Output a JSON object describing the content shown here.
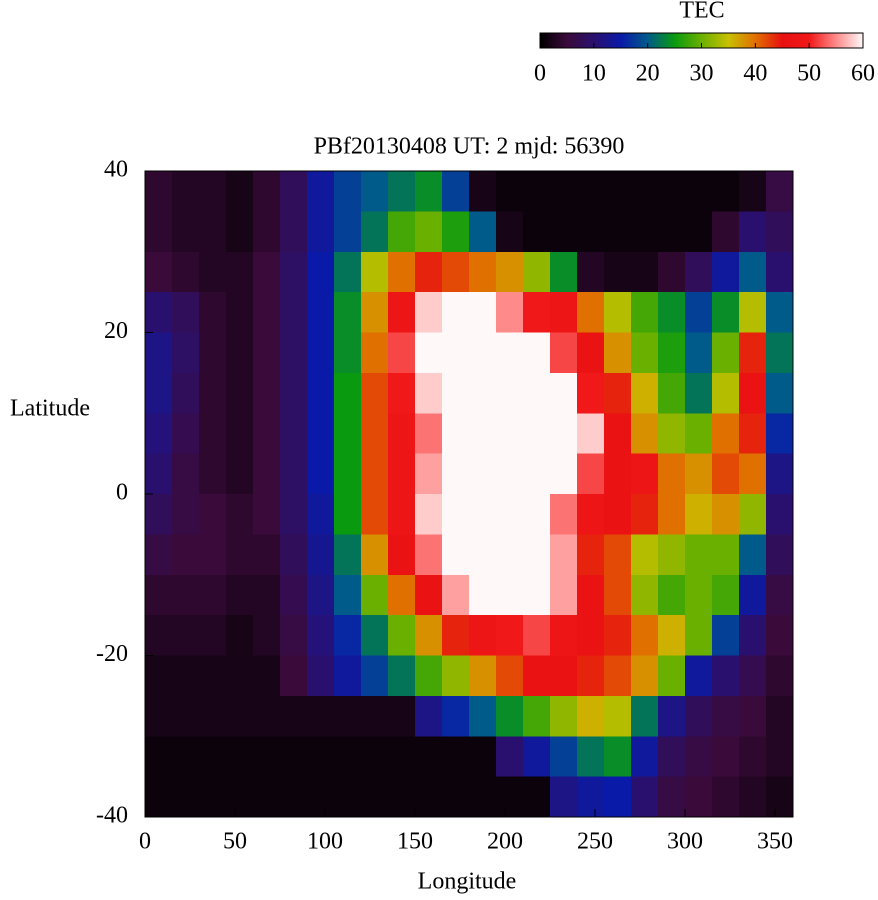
{
  "chart_data": {
    "type": "heatmap",
    "title": "PBf20130408  UT: 2  mjd: 56390",
    "xlabel": "Longitude",
    "ylabel": "Latitude",
    "xlim": [
      0,
      360
    ],
    "xticks": [
      0,
      50,
      100,
      150,
      200,
      250,
      300,
      350
    ],
    "ylim": [
      -40,
      40
    ],
    "yticks": [
      -40,
      -20,
      0,
      20,
      40
    ],
    "x": [
      7.5,
      22.5,
      37.5,
      52.5,
      67.5,
      82.5,
      97.5,
      112.5,
      127.5,
      142.5,
      157.5,
      172.5,
      187.5,
      202.5,
      217.5,
      232.5,
      247.5,
      262.5,
      277.5,
      292.5,
      307.5,
      322.5,
      337.5,
      352.5
    ],
    "y": [
      37.5,
      32.5,
      27.5,
      22.5,
      17.5,
      12.5,
      7.5,
      2.5,
      -2.5,
      -7.5,
      -12.5,
      -17.5,
      -22.5,
      -27.5,
      -32.5,
      -37.5
    ],
    "values": [
      [
        4,
        3,
        3,
        2,
        4,
        8,
        14,
        18,
        20,
        22,
        24,
        18,
        2,
        1,
        1,
        1,
        1,
        1,
        1,
        1,
        1,
        1,
        2,
        6
      ],
      [
        4,
        3,
        3,
        2,
        4,
        8,
        14,
        18,
        22,
        28,
        30,
        26,
        20,
        2,
        1,
        1,
        1,
        1,
        1,
        1,
        1,
        4,
        10,
        8
      ],
      [
        5,
        4,
        3,
        3,
        5,
        9,
        15,
        22,
        34,
        40,
        44,
        42,
        40,
        38,
        32,
        24,
        3,
        2,
        2,
        4,
        8,
        14,
        20,
        10
      ],
      [
        10,
        8,
        4,
        3,
        5,
        9,
        15,
        24,
        38,
        48,
        58,
        60,
        60,
        55,
        50,
        48,
        40,
        34,
        28,
        24,
        18,
        24,
        34,
        20
      ],
      [
        12,
        9,
        4,
        3,
        5,
        9,
        15,
        24,
        40,
        52,
        60,
        60,
        60,
        60,
        60,
        52,
        46,
        38,
        30,
        26,
        20,
        30,
        44,
        22
      ],
      [
        12,
        8,
        4,
        3,
        5,
        9,
        15,
        25,
        42,
        50,
        58,
        60,
        60,
        60,
        60,
        60,
        50,
        44,
        36,
        28,
        22,
        34,
        46,
        20
      ],
      [
        11,
        7,
        4,
        3,
        5,
        9,
        15,
        25,
        42,
        48,
        54,
        60,
        60,
        60,
        60,
        60,
        58,
        46,
        38,
        32,
        30,
        40,
        44,
        16
      ],
      [
        10,
        6,
        4,
        3,
        5,
        9,
        15,
        25,
        42,
        48,
        56,
        60,
        60,
        60,
        60,
        60,
        52,
        46,
        48,
        40,
        38,
        42,
        40,
        12
      ],
      [
        8,
        6,
        5,
        4,
        5,
        9,
        14,
        25,
        42,
        48,
        58,
        60,
        60,
        60,
        60,
        54,
        48,
        46,
        44,
        40,
        36,
        38,
        32,
        10
      ],
      [
        6,
        5,
        5,
        4,
        4,
        8,
        13,
        22,
        38,
        46,
        54,
        60,
        60,
        60,
        60,
        56,
        44,
        42,
        34,
        32,
        30,
        30,
        20,
        8
      ],
      [
        4,
        4,
        4,
        3,
        3,
        7,
        12,
        20,
        30,
        40,
        46,
        56,
        60,
        60,
        60,
        56,
        46,
        42,
        32,
        28,
        30,
        28,
        14,
        6
      ],
      [
        3,
        3,
        3,
        2,
        3,
        6,
        11,
        16,
        22,
        30,
        38,
        44,
        48,
        50,
        52,
        48,
        46,
        44,
        40,
        36,
        30,
        18,
        10,
        5
      ],
      [
        2,
        2,
        2,
        2,
        2,
        5,
        10,
        14,
        18,
        22,
        28,
        32,
        38,
        42,
        46,
        46,
        44,
        42,
        38,
        30,
        14,
        10,
        7,
        4
      ],
      [
        2,
        2,
        2,
        2,
        2,
        2,
        2,
        2,
        2,
        2,
        12,
        16,
        20,
        24,
        28,
        32,
        36,
        34,
        22,
        12,
        8,
        6,
        5,
        3
      ],
      [
        1,
        1,
        1,
        1,
        1,
        1,
        1,
        1,
        1,
        1,
        1,
        1,
        1,
        10,
        14,
        18,
        22,
        24,
        14,
        8,
        6,
        5,
        4,
        3
      ],
      [
        1,
        1,
        1,
        1,
        1,
        1,
        1,
        1,
        1,
        1,
        1,
        1,
        1,
        1,
        1,
        12,
        14,
        15,
        10,
        6,
        5,
        4,
        3,
        2
      ]
    ],
    "colorbar": {
      "label": "TEC",
      "lim": [
        0,
        60
      ],
      "ticks": [
        0,
        10,
        20,
        30,
        40,
        50,
        60
      ]
    },
    "colorscale": [
      [
        0,
        "#000000"
      ],
      [
        5,
        "#3a0a3a"
      ],
      [
        10,
        "#2a106e"
      ],
      [
        15,
        "#0a1aa8"
      ],
      [
        20,
        "#005a8a"
      ],
      [
        25,
        "#0a9a10"
      ],
      [
        30,
        "#6ab000"
      ],
      [
        35,
        "#c8c000"
      ],
      [
        40,
        "#e07000"
      ],
      [
        45,
        "#e81010"
      ],
      [
        50,
        "#f01818"
      ],
      [
        55,
        "#ff8a8a"
      ],
      [
        60,
        "#fff8f8"
      ]
    ]
  }
}
